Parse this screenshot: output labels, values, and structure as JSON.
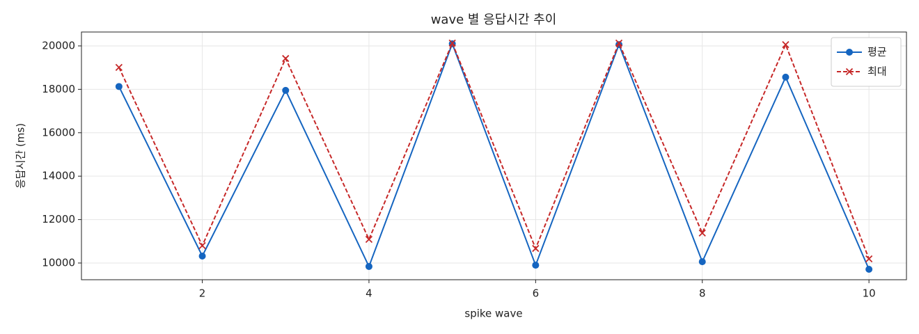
{
  "chart_data": {
    "type": "line",
    "title": "wave 별 응답시간 추이",
    "x_label": "spike wave",
    "y_label": "응답시간 (ms)",
    "x": [
      1,
      2,
      3,
      4,
      5,
      6,
      7,
      8,
      9,
      10
    ],
    "series": [
      {
        "name": "평균",
        "color": "#1565c0",
        "marker": "o",
        "linestyle": "solid",
        "values": [
          18130,
          10320,
          17950,
          9840,
          20100,
          9900,
          20060,
          10060,
          18560,
          9710
        ]
      },
      {
        "name": "최대",
        "color": "#c62828",
        "marker": "x",
        "linestyle": "dashed",
        "values": [
          19010,
          10800,
          19420,
          11090,
          20130,
          10670,
          20130,
          11380,
          20060,
          10190
        ]
      }
    ],
    "xlim": [
      0.55,
      10.45
    ],
    "xticks": [
      2,
      4,
      6,
      8,
      10
    ],
    "ylim": [
      9230,
      20640
    ],
    "yticks": [
      10000,
      12000,
      14000,
      16000,
      18000,
      20000
    ],
    "grid": true,
    "legend": "upper right"
  }
}
